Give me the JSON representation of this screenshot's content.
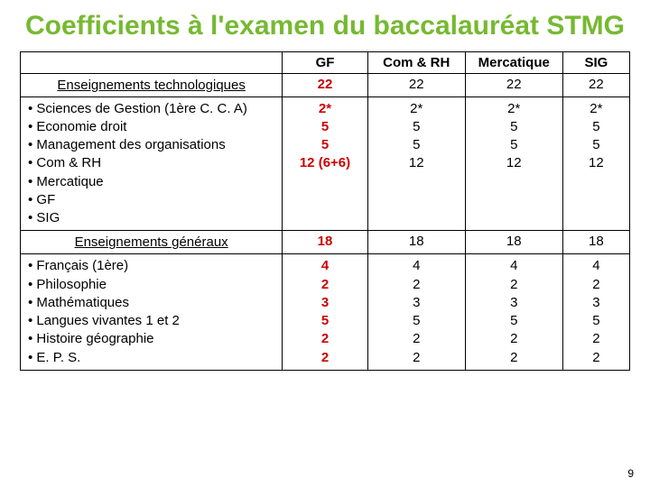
{
  "title": "Coefficients à l'examen du baccalauréat STMG",
  "page_number": "9",
  "columns": {
    "gf": "GF",
    "comrh": "Com & RH",
    "merc": "Mercatique",
    "sig": "SIG"
  },
  "tech": {
    "label": "Enseignements technologiques",
    "totals": {
      "gf": "22",
      "comrh": "22",
      "merc": "22",
      "sig": "22"
    },
    "subjects": [
      "Sciences de Gestion (1ère C. C. A)",
      "Economie droit",
      "Management des organisations",
      "Com & RH",
      "Mercatique",
      "GF",
      "SIG"
    ],
    "gf": {
      "l1": "2*",
      "l2": "5",
      "l3": "5",
      "l4": "",
      "l5": "",
      "l6": "12 (6+6)",
      "l7": ""
    },
    "comrh": {
      "l1": "2*",
      "l2": "5",
      "l3": "5",
      "l4": "12",
      "l5": "",
      "l6": "",
      "l7": ""
    },
    "merc": {
      "l1": "2*",
      "l2": "5",
      "l3": "5",
      "l4": "",
      "l5": "12",
      "l6": "",
      "l7": ""
    },
    "sig": {
      "l1": "2*",
      "l2": "5",
      "l3": "5",
      "l4": "",
      "l5": "",
      "l6": "",
      "l7": "12"
    }
  },
  "gen": {
    "label": "Enseignements généraux",
    "totals": {
      "gf": "18",
      "comrh": "18",
      "merc": "18",
      "sig": "18"
    },
    "subjects": [
      "Français (1ère)",
      "Philosophie",
      "Mathématiques",
      "Langues vivantes 1 et 2",
      "Histoire géographie",
      "E. P. S."
    ],
    "gf": {
      "l1": "4",
      "l2": "2",
      "l3": "3",
      "l4": "5",
      "l5": "2",
      "l6": "2"
    },
    "comrh": {
      "l1": "4",
      "l2": "2",
      "l3": "3",
      "l4": "5",
      "l5": "2",
      "l6": "2"
    },
    "merc": {
      "l1": "4",
      "l2": "2",
      "l3": "3",
      "l4": "5",
      "l5": "2",
      "l6": "2"
    },
    "sig": {
      "l1": "4",
      "l2": "2",
      "l3": "3",
      "l4": "5",
      "l5": "2",
      "l6": "2"
    }
  }
}
